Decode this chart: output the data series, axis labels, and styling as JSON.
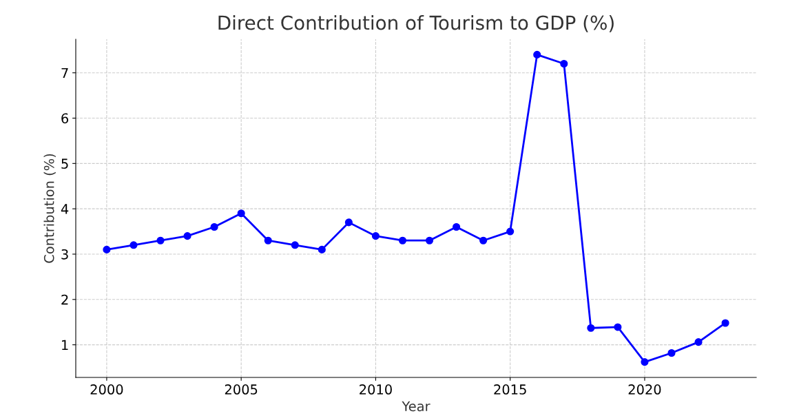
{
  "chart_data": {
    "type": "line",
    "title": "Direct Contribution of Tourism to GDP (%)",
    "xlabel": "Year",
    "ylabel": "Contribution (%)",
    "x": [
      2000,
      2001,
      2002,
      2003,
      2004,
      2005,
      2006,
      2007,
      2008,
      2009,
      2010,
      2011,
      2012,
      2013,
      2014,
      2015,
      2016,
      2017,
      2018,
      2019,
      2020,
      2021,
      2022,
      2023
    ],
    "series": [
      {
        "color": "#0000ff",
        "values": [
          3.1,
          3.2,
          3.3,
          3.4,
          3.6,
          3.9,
          3.3,
          3.2,
          3.1,
          3.7,
          3.4,
          3.3,
          3.3,
          3.6,
          3.3,
          3.5,
          7.4,
          7.2,
          1.37,
          1.39,
          0.62,
          0.82,
          1.06,
          1.48
        ]
      }
    ],
    "xlim": [
      1998.85,
      2024.15
    ],
    "ylim": [
      0.28,
      7.74
    ],
    "xticks": [
      2000,
      2005,
      2010,
      2015,
      2020
    ],
    "yticks": [
      1,
      2,
      3,
      4,
      5,
      6,
      7
    ],
    "grid": true,
    "marker": "circle",
    "line_style": "solid"
  }
}
